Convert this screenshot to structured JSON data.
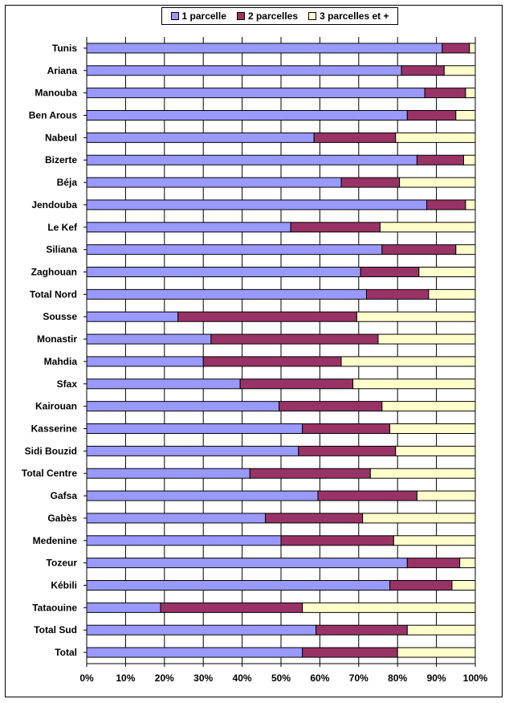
{
  "chart_data": {
    "type": "bar",
    "orientation": "horizontal",
    "stacked": "percent",
    "categories": [
      "Tunis",
      "Ariana",
      "Manouba",
      "Ben Arous",
      "Nabeul",
      "Bizerte",
      "Béja",
      "Jendouba",
      "Le Kef",
      "Siliana",
      "Zaghouan",
      "Total Nord",
      "Sousse",
      "Monastir",
      "Mahdia",
      "Sfax",
      "Kairouan",
      "Kasserine",
      "Sidi Bouzid",
      "Total Centre",
      "Gafsa",
      "Gabès",
      "Medenine",
      "Tozeur",
      "Kébili",
      "Tataouine",
      "Total Sud",
      "Total"
    ],
    "series": [
      {
        "name": "1 parcelle",
        "color": "#9999ff",
        "values": [
          91.5,
          81,
          87,
          82.5,
          58.5,
          85,
          65.5,
          87.5,
          52.5,
          76,
          70.5,
          72,
          23.5,
          32,
          30,
          39.5,
          49.5,
          55.5,
          54.5,
          42,
          59.5,
          46,
          50,
          82.5,
          78,
          19,
          59,
          55.5
        ]
      },
      {
        "name": "2 parcelles",
        "color": "#993366",
        "values": [
          7,
          11,
          10.5,
          12.5,
          21,
          12,
          15,
          10,
          23,
          19,
          15,
          16,
          46,
          43,
          35.5,
          29,
          26.5,
          22.5,
          25,
          31,
          25.5,
          25,
          29,
          13.5,
          16,
          36.5,
          23.5,
          24.5
        ]
      },
      {
        "name": "3 parcelles et +",
        "color": "#ffffcc",
        "values": [
          1.5,
          8,
          2.5,
          5,
          20.5,
          3,
          19.5,
          2.5,
          24.5,
          5,
          14.5,
          12,
          30.5,
          25,
          34.5,
          31.5,
          24,
          22,
          20.5,
          27,
          15,
          29,
          21,
          4,
          6,
          44.5,
          17.5,
          20
        ]
      }
    ],
    "xlim": [
      0,
      100
    ],
    "xticks": [
      "0%",
      "10%",
      "20%",
      "30%",
      "40%",
      "50%",
      "60%",
      "70%",
      "80%",
      "90%",
      "100%"
    ],
    "grid": "vertical",
    "legend": "top"
  }
}
